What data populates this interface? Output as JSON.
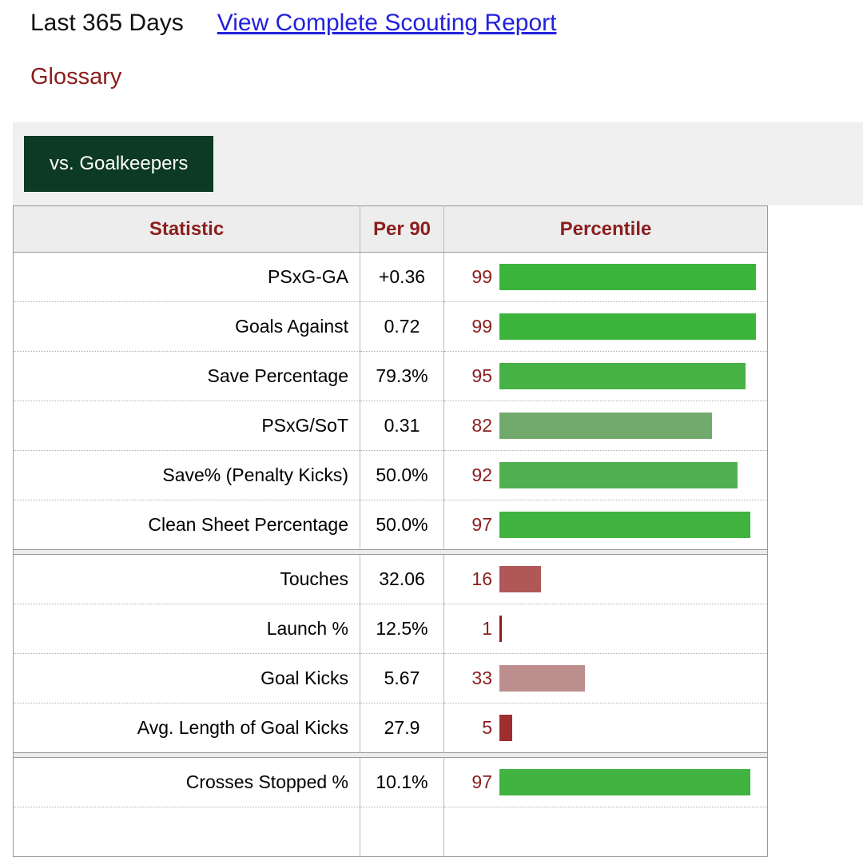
{
  "colors": {
    "link_blue": "#2222dd",
    "dark_red_text": "#8b1e1e",
    "tab_green": "#0c3a22",
    "green_high": "#3cb43c",
    "red_low": "#a02e2e"
  },
  "header": {
    "period": "Last 365 Days",
    "report_link": "View Complete Scouting Report",
    "glossary": "Glossary"
  },
  "tabs": [
    {
      "label": "vs. Goalkeepers",
      "active": true
    }
  ],
  "table": {
    "columns": [
      "Statistic",
      "Per 90",
      "Percentile"
    ],
    "rows": [
      {
        "stat": "PSxG-GA",
        "per90": "+0.36",
        "percentile": 99,
        "bar_color": "#3cb43c",
        "section_start": false
      },
      {
        "stat": "Goals Against",
        "per90": "0.72",
        "percentile": 99,
        "bar_color": "#3cb43c",
        "section_start": false
      },
      {
        "stat": "Save Percentage",
        "per90": "79.3%",
        "percentile": 95,
        "bar_color": "#46b246",
        "section_start": false
      },
      {
        "stat": "PSxG/SoT",
        "per90": "0.31",
        "percentile": 82,
        "bar_color": "#72a96c",
        "section_start": false
      },
      {
        "stat": "Save% (Penalty Kicks)",
        "per90": "50.0%",
        "percentile": 92,
        "bar_color": "#50b050",
        "section_start": false
      },
      {
        "stat": "Clean Sheet Percentage",
        "per90": "50.0%",
        "percentile": 97,
        "bar_color": "#40b340",
        "section_start": false
      },
      {
        "stat": "Touches",
        "per90": "32.06",
        "percentile": 16,
        "bar_color": "#b05858",
        "section_start": true
      },
      {
        "stat": "Launch %",
        "per90": "12.5%",
        "percentile": 1,
        "bar_color": "#8b1e1e",
        "section_start": false
      },
      {
        "stat": "Goal Kicks",
        "per90": "5.67",
        "percentile": 33,
        "bar_color": "#bc8d8d",
        "section_start": false
      },
      {
        "stat": "Avg. Length of Goal Kicks",
        "per90": "27.9",
        "percentile": 5,
        "bar_color": "#a02e2e",
        "section_start": false
      },
      {
        "stat": "Crosses Stopped %",
        "per90": "10.1%",
        "percentile": 97,
        "bar_color": "#40b340",
        "section_start": true
      }
    ]
  },
  "chart_data": {
    "type": "bar",
    "title": "vs. Goalkeepers",
    "subtitle": "Last 365 Days",
    "orientation": "horizontal",
    "categories": [
      "PSxG-GA",
      "Goals Against",
      "Save Percentage",
      "PSxG/SoT",
      "Save% (Penalty Kicks)",
      "Clean Sheet Percentage",
      "Touches",
      "Launch %",
      "Goal Kicks",
      "Avg. Length of Goal Kicks",
      "Crosses Stopped %"
    ],
    "series": [
      {
        "name": "Per 90",
        "values": [
          "+0.36",
          "0.72",
          "79.3%",
          "0.31",
          "50.0%",
          "50.0%",
          "32.06",
          "12.5%",
          "5.67",
          "27.9",
          "10.1%"
        ]
      },
      {
        "name": "Percentile",
        "values": [
          99,
          99,
          95,
          82,
          92,
          97,
          16,
          1,
          33,
          5,
          97
        ]
      }
    ],
    "xlabel": "Percentile",
    "ylabel": "Statistic",
    "xlim": [
      0,
      100
    ],
    "grid": false,
    "legend_position": "none"
  }
}
